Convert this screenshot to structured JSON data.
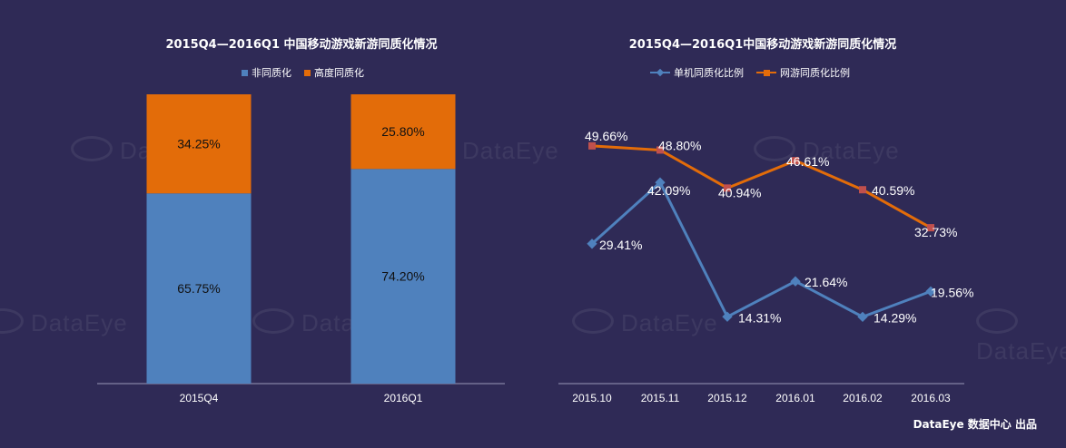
{
  "watermark": "DataEye",
  "footer": "DataEye 数据中心 出品",
  "chart_data": [
    {
      "type": "bar",
      "stacked": true,
      "title": "2015Q4—2016Q1 中国移动游戏新游同质化情况",
      "categories": [
        "2015Q4",
        "2016Q1"
      ],
      "series": [
        {
          "name": "非同质化",
          "values": [
            65.75,
            74.2
          ],
          "labels": [
            "65.75%",
            "74.20%"
          ],
          "color": "#4f81bd"
        },
        {
          "name": "高度同质化",
          "values": [
            34.25,
            25.8
          ],
          "labels": [
            "34.25%",
            "25.80%"
          ],
          "color": "#e36c09"
        }
      ],
      "ylim": [
        0,
        100
      ],
      "legend": "top"
    },
    {
      "type": "line",
      "title": "2015Q4—2016Q1中国移动游戏新游同质化情况",
      "categories": [
        "2015.10",
        "2015.11",
        "2015.12",
        "2016.01",
        "2016.02",
        "2016.03"
      ],
      "series": [
        {
          "name": "单机同质化比例",
          "values": [
            29.41,
            42.09,
            14.31,
            21.64,
            14.29,
            19.56
          ],
          "labels": [
            "29.41%",
            "42.09%",
            "14.31%",
            "21.64%",
            "14.29%",
            "19.56%"
          ],
          "color": "#4f81bd",
          "marker": "diamond"
        },
        {
          "name": "网游同质化比例",
          "values": [
            49.66,
            48.8,
            40.94,
            46.61,
            40.59,
            32.73
          ],
          "labels": [
            "49.66%",
            "48.80%",
            "40.94%",
            "46.61%",
            "40.59%",
            "32.73%"
          ],
          "color": "#e36c09",
          "marker": "square"
        }
      ],
      "legend": "top"
    }
  ]
}
